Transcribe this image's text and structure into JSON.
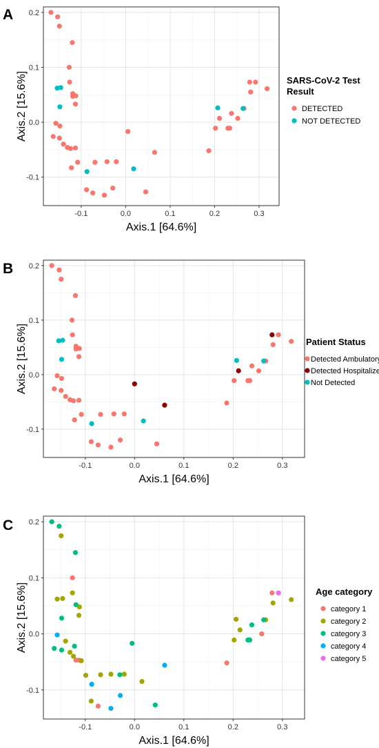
{
  "chart_data": [
    {
      "type": "scatter",
      "panel_label": "A",
      "xlabel": "Axis.1 [64.6%]",
      "ylabel": "Axis.2 [15.6%]",
      "xlim": [
        -0.185,
        0.345
      ],
      "ylim": [
        -0.152,
        0.21
      ],
      "x_ticks": [
        -0.1,
        0.0,
        0.1,
        0.2,
        0.3
      ],
      "x_tick_labels": [
        "-0.1",
        "0.0",
        "0.1",
        "0.2",
        "0.3"
      ],
      "y_ticks": [
        -0.1,
        0.0,
        0.1,
        0.2
      ],
      "y_tick_labels": [
        "-0.1",
        "0.0",
        "0.1",
        "0.2"
      ],
      "grid": true,
      "legend_title": "SARS-CoV-2 Test Result",
      "legend_position": "right",
      "series": [
        {
          "name": "DETECTED",
          "color": "#F8766D",
          "points": [
            [
              -0.168,
              0.2
            ],
            [
              -0.153,
              0.192
            ],
            [
              -0.149,
              0.175
            ],
            [
              -0.12,
              0.145
            ],
            [
              -0.127,
              0.1
            ],
            [
              -0.126,
              0.073
            ],
            [
              -0.119,
              0.052
            ],
            [
              -0.119,
              0.047
            ],
            [
              -0.112,
              0.048
            ],
            [
              -0.113,
              0.033
            ],
            [
              -0.157,
              -0.002
            ],
            [
              -0.163,
              -0.026
            ],
            [
              -0.148,
              -0.007
            ],
            [
              -0.149,
              -0.029
            ],
            [
              -0.14,
              -0.04
            ],
            [
              -0.131,
              -0.046
            ],
            [
              -0.124,
              -0.048
            ],
            [
              -0.113,
              -0.047
            ],
            [
              -0.122,
              -0.083
            ],
            [
              -0.108,
              -0.073
            ],
            [
              -0.088,
              -0.123
            ],
            [
              -0.074,
              -0.129
            ],
            [
              -0.069,
              -0.073
            ],
            [
              -0.042,
              -0.072
            ],
            [
              -0.021,
              -0.072
            ],
            [
              -0.048,
              -0.133
            ],
            [
              -0.029,
              -0.12
            ],
            [
              0.005,
              -0.017
            ],
            [
              0.045,
              -0.127
            ],
            [
              0.065,
              -0.055
            ],
            [
              0.187,
              -0.052
            ],
            [
              0.202,
              -0.011
            ],
            [
              0.211,
              0.007
            ],
            [
              0.23,
              -0.011
            ],
            [
              0.234,
              -0.011
            ],
            [
              0.238,
              0.016
            ],
            [
              0.252,
              0.007
            ],
            [
              0.266,
              0.025
            ],
            [
              0.279,
              0.073
            ],
            [
              0.292,
              0.073
            ],
            [
              0.281,
              0.055
            ],
            [
              0.318,
              0.061
            ]
          ]
        },
        {
          "name": "NOT DETECTED",
          "color": "#00BFC4",
          "points": [
            [
              -0.154,
              0.062
            ],
            [
              -0.146,
              0.063
            ],
            [
              -0.148,
              0.028
            ],
            [
              -0.087,
              -0.09
            ],
            [
              0.018,
              -0.085
            ],
            [
              0.207,
              0.026
            ],
            [
              0.264,
              0.025
            ]
          ]
        }
      ]
    },
    {
      "type": "scatter",
      "panel_label": "B",
      "xlabel": "Axis.1 [64.6%]",
      "ylabel": "Axis.2 [15.6%]",
      "xlim": [
        -0.185,
        0.345
      ],
      "ylim": [
        -0.152,
        0.21
      ],
      "x_ticks": [
        -0.1,
        0.0,
        0.1,
        0.2,
        0.3
      ],
      "x_tick_labels": [
        "-0.1",
        "0.0",
        "0.1",
        "0.2",
        "0.3"
      ],
      "y_ticks": [
        -0.1,
        0.0,
        0.1,
        0.2
      ],
      "y_tick_labels": [
        "-0.1",
        "0.0",
        "0.1",
        "0.2"
      ],
      "grid": true,
      "legend_title": "Patient Status",
      "legend_position": "right",
      "series": [
        {
          "name": "Detected Ambulatory",
          "color": "#F8766D",
          "points": [
            [
              -0.168,
              0.2
            ],
            [
              -0.153,
              0.192
            ],
            [
              -0.149,
              0.175
            ],
            [
              -0.12,
              0.145
            ],
            [
              -0.127,
              0.1
            ],
            [
              -0.126,
              0.073
            ],
            [
              -0.119,
              0.052
            ],
            [
              -0.119,
              0.047
            ],
            [
              -0.112,
              0.048
            ],
            [
              -0.113,
              0.033
            ],
            [
              -0.157,
              -0.002
            ],
            [
              -0.163,
              -0.026
            ],
            [
              -0.148,
              -0.007
            ],
            [
              -0.149,
              -0.029
            ],
            [
              -0.14,
              -0.04
            ],
            [
              -0.131,
              -0.046
            ],
            [
              -0.124,
              -0.048
            ],
            [
              -0.113,
              -0.047
            ],
            [
              -0.122,
              -0.083
            ],
            [
              -0.108,
              -0.073
            ],
            [
              -0.088,
              -0.123
            ],
            [
              -0.074,
              -0.129
            ],
            [
              -0.069,
              -0.073
            ],
            [
              -0.042,
              -0.072
            ],
            [
              -0.021,
              -0.072
            ],
            [
              -0.048,
              -0.133
            ],
            [
              -0.029,
              -0.12
            ],
            [
              0.045,
              -0.127
            ],
            [
              0.187,
              -0.052
            ],
            [
              0.202,
              -0.011
            ],
            [
              0.23,
              -0.011
            ],
            [
              0.234,
              -0.011
            ],
            [
              0.238,
              0.016
            ],
            [
              0.252,
              0.007
            ],
            [
              0.266,
              0.025
            ],
            [
              0.292,
              0.073
            ],
            [
              0.281,
              0.055
            ],
            [
              0.318,
              0.061
            ]
          ]
        },
        {
          "name": "Detected Hospitalized",
          "color": "#8B0000",
          "points": [
            [
              0.0,
              -0.017
            ],
            [
              0.061,
              -0.056
            ],
            [
              0.211,
              0.007
            ],
            [
              0.279,
              0.073
            ]
          ]
        },
        {
          "name": "Not Detected",
          "color": "#00BFC4",
          "points": [
            [
              -0.154,
              0.062
            ],
            [
              -0.146,
              0.063
            ],
            [
              -0.148,
              0.028
            ],
            [
              -0.087,
              -0.09
            ],
            [
              0.018,
              -0.085
            ],
            [
              0.207,
              0.026
            ],
            [
              0.262,
              0.025
            ]
          ]
        }
      ]
    },
    {
      "type": "scatter",
      "panel_label": "C",
      "xlabel": "Axis.1 [64.6%]",
      "ylabel": "Axis.2 [15.6%]",
      "xlim": [
        -0.185,
        0.345
      ],
      "ylim": [
        -0.152,
        0.21
      ],
      "x_ticks": [
        -0.1,
        0.0,
        0.1,
        0.2,
        0.3
      ],
      "x_tick_labels": [
        "-0.1",
        "0.0",
        "0.1",
        "0.2",
        "0.3"
      ],
      "y_ticks": [
        -0.1,
        0.0,
        0.1,
        0.2
      ],
      "y_tick_labels": [
        "-0.1",
        "0.0",
        "0.1",
        "0.2"
      ],
      "grid": true,
      "legend_title": "Age category",
      "legend_position": "right",
      "series": [
        {
          "name": "category 1",
          "color": "#F8766D",
          "points": [
            [
              -0.126,
              0.1
            ],
            [
              -0.119,
              -0.047
            ],
            [
              -0.113,
              -0.047
            ],
            [
              -0.074,
              -0.129
            ],
            [
              0.187,
              -0.052
            ],
            [
              0.258,
              0.0
            ],
            [
              0.279,
              0.073
            ]
          ]
        },
        {
          "name": "category 2",
          "color": "#A3A500",
          "points": [
            [
              -0.149,
              0.175
            ],
            [
              -0.157,
              0.062
            ],
            [
              -0.146,
              0.063
            ],
            [
              -0.126,
              0.073
            ],
            [
              -0.112,
              0.048
            ],
            [
              -0.113,
              0.033
            ],
            [
              -0.14,
              -0.013
            ],
            [
              -0.131,
              -0.033
            ],
            [
              -0.124,
              -0.04
            ],
            [
              -0.108,
              -0.048
            ],
            [
              -0.099,
              -0.074
            ],
            [
              -0.088,
              -0.12
            ],
            [
              -0.069,
              -0.073
            ],
            [
              -0.048,
              -0.072
            ],
            [
              -0.021,
              -0.072
            ],
            [
              0.015,
              -0.085
            ],
            [
              0.202,
              -0.011
            ],
            [
              0.206,
              0.026
            ],
            [
              0.214,
              0.007
            ],
            [
              0.266,
              0.025
            ],
            [
              0.281,
              0.055
            ],
            [
              0.318,
              0.061
            ]
          ]
        },
        {
          "name": "category 3",
          "color": "#00BF7D",
          "points": [
            [
              -0.168,
              0.2
            ],
            [
              -0.153,
              0.192
            ],
            [
              -0.12,
              0.145
            ],
            [
              -0.119,
              0.052
            ],
            [
              -0.148,
              0.028
            ],
            [
              -0.163,
              -0.026
            ],
            [
              -0.148,
              -0.029
            ],
            [
              -0.122,
              -0.022
            ],
            [
              -0.005,
              -0.017
            ],
            [
              -0.03,
              -0.073
            ],
            [
              0.042,
              -0.127
            ],
            [
              0.23,
              -0.011
            ],
            [
              0.234,
              -0.011
            ],
            [
              0.238,
              0.016
            ],
            [
              0.262,
              0.025
            ]
          ]
        },
        {
          "name": "category 4",
          "color": "#00B0F6",
          "points": [
            [
              -0.157,
              -0.002
            ],
            [
              -0.087,
              -0.09
            ],
            [
              -0.048,
              -0.133
            ],
            [
              -0.029,
              -0.11
            ],
            [
              0.061,
              -0.056
            ]
          ]
        },
        {
          "name": "category 5",
          "color": "#E76BF3",
          "points": [
            [
              0.292,
              0.073
            ]
          ]
        }
      ]
    }
  ]
}
